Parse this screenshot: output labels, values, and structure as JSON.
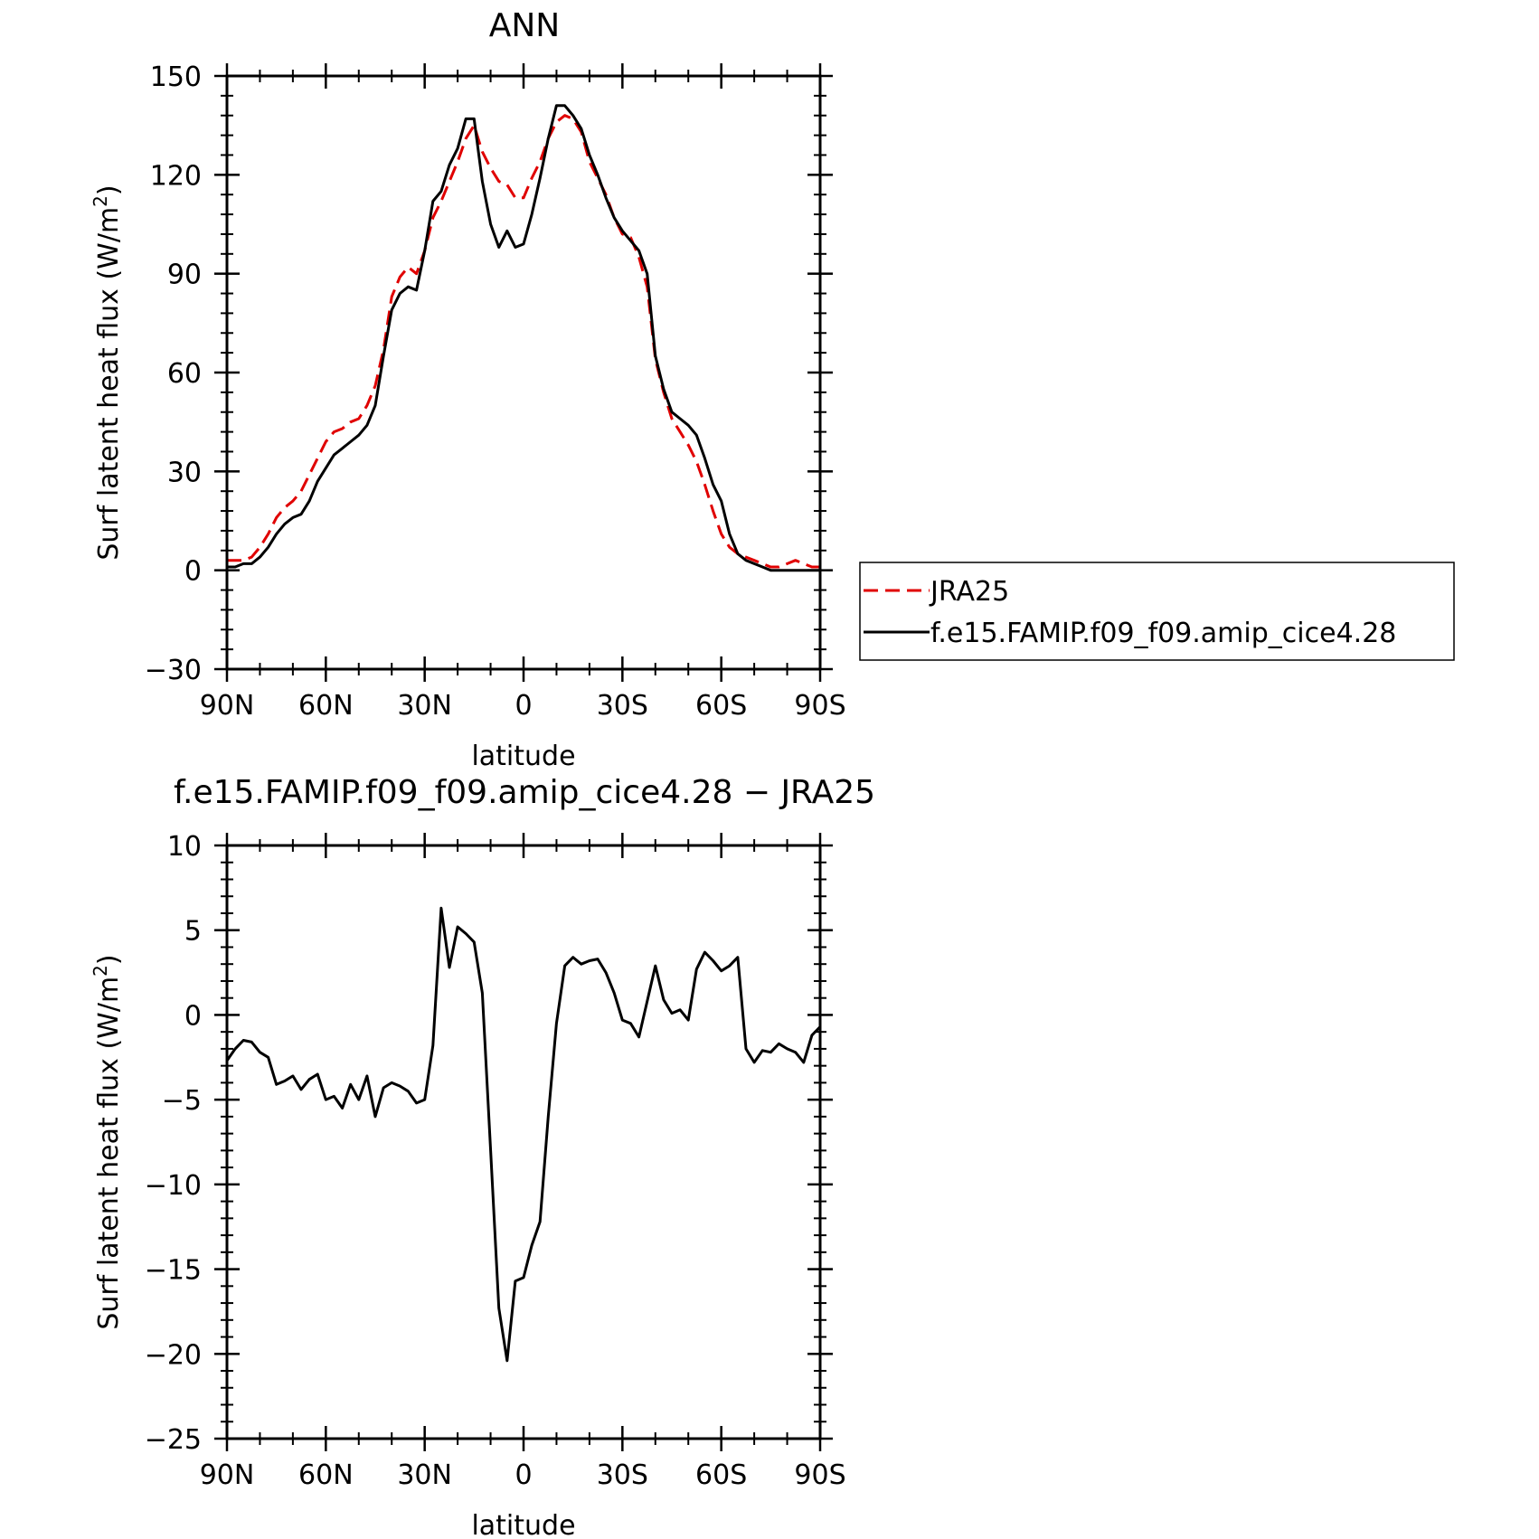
{
  "chart_data": [
    {
      "type": "line",
      "title": "ANN",
      "xlabel": "latitude",
      "ylabel_main": "Surf latent heat flux (W/m",
      "ylabel_sup": "2",
      "ylabel_close": ")",
      "xlim": [
        90,
        -90
      ],
      "ylim": [
        -30,
        150
      ],
      "xtick_values": [
        90,
        60,
        30,
        0,
        -30,
        -60,
        -90
      ],
      "xtick_labels": [
        "90N",
        "60N",
        "30N",
        "0",
        "30S",
        "60S",
        "90S"
      ],
      "ytick_values": [
        -30,
        0,
        30,
        60,
        90,
        120,
        150
      ],
      "ytick_labels": [
        "−30",
        "0",
        "30",
        "60",
        "90",
        "120",
        "150"
      ],
      "legend_position": "right",
      "series": [
        {
          "name": "JRA25",
          "color": "#e00000",
          "dash": true,
          "x": [
            90,
            87.5,
            85,
            82.5,
            80,
            77.5,
            75,
            72.5,
            70,
            67.5,
            65,
            62.5,
            60,
            57.5,
            55,
            52.5,
            50,
            47.5,
            45,
            42.5,
            40,
            37.5,
            35,
            32.5,
            30,
            27.5,
            25,
            22.5,
            20,
            17.5,
            15,
            12.5,
            10,
            7.5,
            5,
            2.5,
            0,
            -2.5,
            -5,
            -7.5,
            -10,
            -12.5,
            -15,
            -17.5,
            -20,
            -22.5,
            -25,
            -27.5,
            -30,
            -32.5,
            -35,
            -37.5,
            -40,
            -42.5,
            -45,
            -47.5,
            -50,
            -52.5,
            -55,
            -57.5,
            -60,
            -62.5,
            -65,
            -67.5,
            -70,
            -72.5,
            -75,
            -77.5,
            -80,
            -82.5,
            -85,
            -87.5,
            -90
          ],
          "y": [
            3,
            3,
            3,
            4,
            7,
            11,
            16,
            19,
            21,
            24,
            29,
            34,
            39,
            42,
            43,
            45,
            46,
            50,
            56,
            67,
            83,
            89,
            92,
            90,
            97,
            107,
            112,
            118,
            124,
            131,
            135,
            127,
            122,
            118,
            117,
            113,
            113,
            119,
            124,
            131,
            136,
            138,
            137,
            133,
            124,
            119,
            114,
            107,
            102,
            101,
            95,
            86,
            64,
            54,
            46,
            42,
            38,
            33,
            26,
            18,
            11,
            7,
            5,
            4,
            3,
            2,
            1,
            1,
            2,
            3,
            2,
            1,
            1
          ]
        },
        {
          "name": "f.e15.FAMIP.f09_f09.amip_cice4.28",
          "color": "#000000",
          "dash": false,
          "x": [
            90,
            87.5,
            85,
            82.5,
            80,
            77.5,
            75,
            72.5,
            70,
            67.5,
            65,
            62.5,
            60,
            57.5,
            55,
            52.5,
            50,
            47.5,
            45,
            42.5,
            40,
            37.5,
            35,
            32.5,
            30,
            27.5,
            25,
            22.5,
            20,
            17.5,
            15,
            12.5,
            10,
            7.5,
            5,
            2.5,
            0,
            -2.5,
            -5,
            -7.5,
            -10,
            -12.5,
            -15,
            -17.5,
            -20,
            -22.5,
            -25,
            -27.5,
            -30,
            -32.5,
            -35,
            -37.5,
            -40,
            -42.5,
            -45,
            -47.5,
            -50,
            -52.5,
            -55,
            -57.5,
            -60,
            -62.5,
            -65,
            -67.5,
            -70,
            -72.5,
            -75,
            -77.5,
            -80,
            -82.5,
            -85,
            -87.5,
            -90
          ],
          "y": [
            1,
            1,
            2,
            2,
            4,
            7,
            11,
            14,
            16,
            17,
            21,
            27,
            31,
            35,
            37,
            39,
            41,
            44,
            50,
            65,
            79,
            84,
            86,
            85,
            97,
            112,
            115,
            123,
            128,
            137,
            137,
            118,
            105,
            98,
            103,
            98,
            99,
            108,
            119,
            131,
            141,
            141,
            138,
            134,
            126,
            120,
            113,
            107,
            103,
            100,
            97,
            90,
            65,
            55,
            48,
            46,
            44,
            41,
            34,
            26,
            21,
            11,
            5,
            3,
            2,
            1,
            0,
            0,
            0,
            0,
            0,
            0,
            0
          ]
        }
      ]
    },
    {
      "type": "line",
      "title": "f.e15.FAMIP.f09_f09.amip_cice4.28 − JRA25",
      "xlabel": "latitude",
      "ylabel_main": "Surf latent heat flux (W/m",
      "ylabel_sup": "2",
      "ylabel_close": ")",
      "xlim": [
        90,
        -90
      ],
      "ylim": [
        -25,
        10
      ],
      "xtick_values": [
        90,
        60,
        30,
        0,
        -30,
        -60,
        -90
      ],
      "xtick_labels": [
        "90N",
        "60N",
        "30N",
        "0",
        "30S",
        "60S",
        "90S"
      ],
      "ytick_values": [
        -25,
        -20,
        -15,
        -10,
        -5,
        0,
        5,
        10
      ],
      "ytick_labels": [
        "−25",
        "−20",
        "−15",
        "−10",
        "−5",
        "0",
        "5",
        "10"
      ],
      "series": [
        {
          "color": "#000000",
          "dash": false,
          "x": [
            90,
            87.5,
            85,
            82.5,
            80,
            77.5,
            75,
            72.5,
            70,
            67.5,
            65,
            62.5,
            60,
            57.5,
            55,
            52.5,
            50,
            47.5,
            45,
            42.5,
            40,
            37.5,
            35,
            32.5,
            30,
            27.5,
            25,
            22.5,
            20,
            17.5,
            15,
            12.5,
            10,
            7.5,
            5,
            2.5,
            0,
            -2.5,
            -5,
            -7.5,
            -10,
            -12.5,
            -15,
            -17.5,
            -20,
            -22.5,
            -25,
            -27.5,
            -30,
            -32.5,
            -35,
            -37.5,
            -40,
            -42.5,
            -45,
            -47.5,
            -50,
            -52.5,
            -55,
            -57.5,
            -60,
            -62.5,
            -65,
            -67.5,
            -70,
            -72.5,
            -75,
            -77.5,
            -80,
            -82.5,
            -85,
            -87.5,
            -90
          ],
          "y": [
            -2.7,
            -2.0,
            -1.5,
            -1.6,
            -2.2,
            -2.5,
            -4.1,
            -3.9,
            -3.6,
            -4.4,
            -3.8,
            -3.5,
            -5.0,
            -4.8,
            -5.5,
            -4.1,
            -5.0,
            -3.6,
            -6.0,
            -4.3,
            -4.0,
            -4.2,
            -4.5,
            -5.2,
            -5.0,
            -1.8,
            6.3,
            2.8,
            5.2,
            4.8,
            4.3,
            1.3,
            -8.0,
            -17.3,
            -20.4,
            -15.7,
            -15.5,
            -13.6,
            -12.2,
            -6.0,
            -0.5,
            2.9,
            3.4,
            3.0,
            3.2,
            3.3,
            2.5,
            1.3,
            -0.3,
            -0.5,
            -1.3,
            0.8,
            2.9,
            0.9,
            0.1,
            0.3,
            -0.3,
            2.7,
            3.7,
            3.2,
            2.6,
            2.9,
            3.4,
            -2.0,
            -2.8,
            -2.1,
            -2.2,
            -1.7,
            -2.0,
            -2.2,
            -2.8,
            -1.2,
            -0.7
          ]
        }
      ]
    }
  ]
}
